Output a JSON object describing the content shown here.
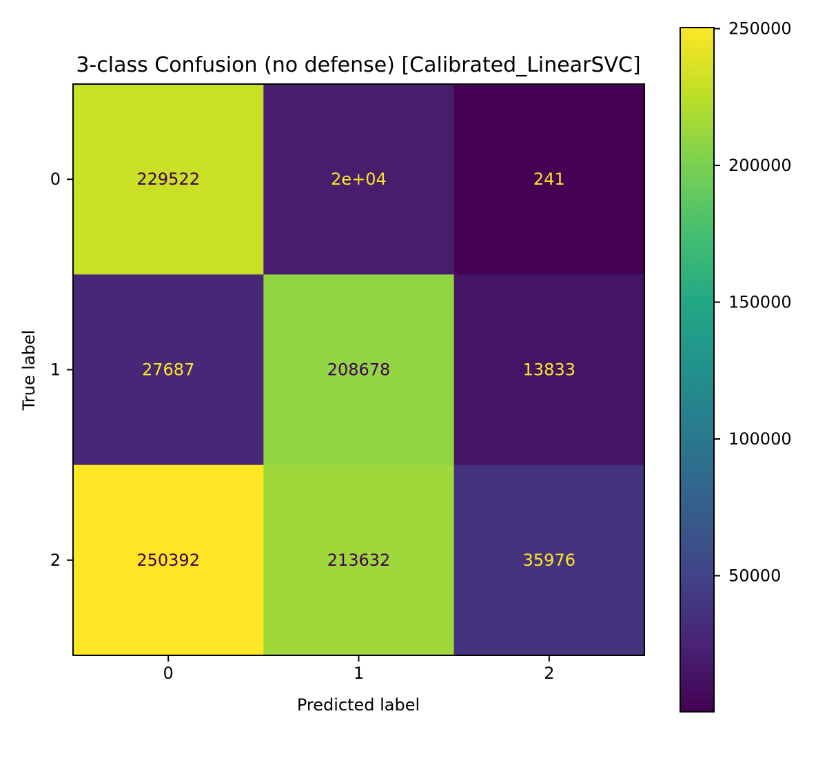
{
  "chart_data": {
    "type": "heatmap",
    "title": "3-class Confusion (no defense) [Calibrated_LinearSVC]",
    "xlabel": "Predicted label",
    "ylabel": "True label",
    "x_categories": [
      "0",
      "1",
      "2"
    ],
    "y_categories": [
      "0",
      "1",
      "2"
    ],
    "values": [
      [
        229522,
        20000,
        241
      ],
      [
        27687,
        208678,
        13833
      ],
      [
        250392,
        213632,
        35976
      ]
    ],
    "cell_labels": [
      [
        "229522",
        "2e+04",
        "241"
      ],
      [
        "27687",
        "208678",
        "13833"
      ],
      [
        "250392",
        "213632",
        "35976"
      ]
    ],
    "colormap": "viridis",
    "colorbar": {
      "vmin": 241,
      "vmax": 250392,
      "ticks": [
        50000,
        100000,
        150000,
        200000,
        250000
      ],
      "tick_labels": [
        "50000",
        "100000",
        "150000",
        "200000",
        "250000"
      ]
    },
    "text_colors": {
      "on_dark": "#fde725",
      "on_light": "#440154"
    }
  }
}
